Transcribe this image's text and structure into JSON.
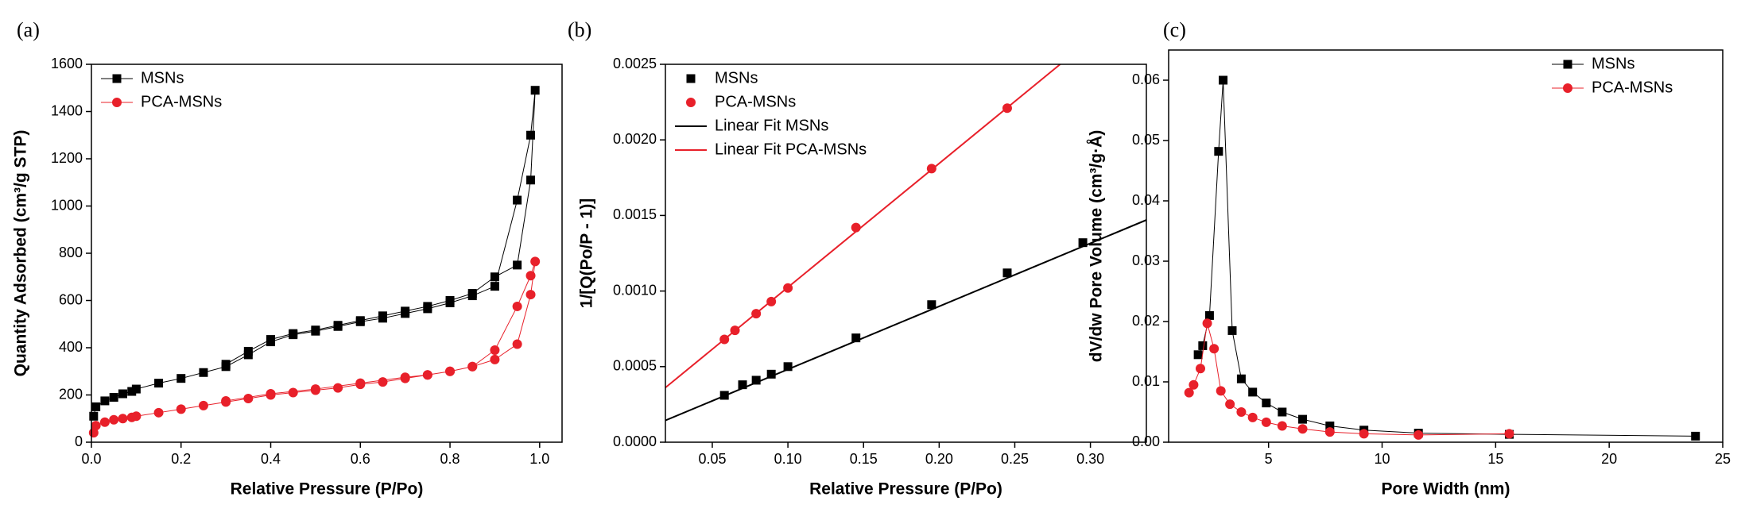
{
  "chart_data": [
    {
      "type": "scatter",
      "panel_label": "(a)",
      "xlabel": "Relative Pressure (P/Po)",
      "ylabel": "Quantity Adsorbed (cm³/g STP)",
      "xlim": [
        0,
        1.05
      ],
      "ylim": [
        0,
        1600
      ],
      "xticks": [
        {
          "value": 0,
          "label": "0.0"
        },
        0.2,
        0.4,
        0.6,
        0.8,
        {
          "value": 1,
          "label": "1.0"
        }
      ],
      "yticks": [
        0,
        200,
        400,
        600,
        800,
        1000,
        1200,
        1400,
        1600
      ],
      "legend": "upper left",
      "series": [
        {
          "name": "MSNs",
          "color": "#000000",
          "marker": "square",
          "line": true,
          "x": [
            0.005,
            0.01,
            0.03,
            0.05,
            0.07,
            0.09,
            0.1,
            0.15,
            0.2,
            0.25,
            0.3,
            0.35,
            0.4,
            0.45,
            0.5,
            0.55,
            0.6,
            0.65,
            0.7,
            0.75,
            0.8,
            0.85,
            0.9,
            0.95,
            0.98,
            0.99,
            0.98,
            0.95,
            0.9,
            0.85,
            0.8,
            0.75,
            0.7,
            0.65,
            0.6,
            0.55,
            0.5,
            0.45,
            0.4,
            0.35,
            0.3
          ],
          "values": [
            110,
            150,
            175,
            190,
            205,
            215,
            225,
            250,
            270,
            295,
            320,
            370,
            425,
            455,
            470,
            490,
            510,
            525,
            545,
            565,
            590,
            620,
            660,
            1025,
            1300,
            1490,
            1110,
            750,
            700,
            630,
            600,
            575,
            555,
            535,
            515,
            495,
            475,
            460,
            435,
            385,
            330
          ]
        },
        {
          "name": "PCA-MSNs",
          "color": "#e8202a",
          "marker": "circle",
          "line": true,
          "x": [
            0.005,
            0.01,
            0.03,
            0.05,
            0.07,
            0.09,
            0.1,
            0.15,
            0.2,
            0.25,
            0.3,
            0.35,
            0.4,
            0.45,
            0.5,
            0.55,
            0.6,
            0.65,
            0.7,
            0.75,
            0.8,
            0.85,
            0.9,
            0.95,
            0.98,
            0.99,
            0.98,
            0.95,
            0.9,
            0.85,
            0.8,
            0.75,
            0.7,
            0.6,
            0.5,
            0.4,
            0.3
          ],
          "values": [
            40,
            70,
            85,
            95,
            100,
            105,
            110,
            125,
            140,
            155,
            170,
            185,
            200,
            210,
            220,
            230,
            245,
            255,
            270,
            285,
            300,
            320,
            390,
            575,
            705,
            765,
            625,
            415,
            350,
            320,
            300,
            285,
            275,
            250,
            225,
            205,
            175
          ]
        }
      ]
    },
    {
      "type": "scatter",
      "panel_label": "(b)",
      "xlabel": "Relative Pressure (P/Po)",
      "ylabel": "1/[Q(Po/P - 1)]",
      "xlim": [
        0.019,
        0.337
      ],
      "ylim": [
        0,
        0.0025
      ],
      "xticks": [
        0.05,
        {
          "value": 0.1,
          "label": "0.10"
        },
        0.15,
        {
          "value": 0.2,
          "label": "0.20"
        },
        0.25,
        {
          "value": 0.3,
          "label": "0.30"
        }
      ],
      "yticks": [
        {
          "value": 0,
          "label": "0.0000"
        },
        {
          "value": 0.0005,
          "label": "0.0005"
        },
        {
          "value": 0.001,
          "label": "0.0010"
        },
        {
          "value": 0.0015,
          "label": "0.0015"
        },
        {
          "value": 0.002,
          "label": "0.0020"
        },
        {
          "value": 0.0025,
          "label": "0.0025"
        }
      ],
      "legend": "upper left",
      "series": [
        {
          "name": "MSNs",
          "color": "#000000",
          "marker": "square",
          "line": false,
          "x": [
            0.058,
            0.07,
            0.079,
            0.089,
            0.1,
            0.145,
            0.195,
            0.245,
            0.295
          ],
          "values": [
            0.00031,
            0.00038,
            0.00041,
            0.00045,
            0.0005,
            0.00069,
            0.00091,
            0.00112,
            0.00132
          ]
        },
        {
          "name": "PCA-MSNs",
          "color": "#e8202a",
          "marker": "circle",
          "line": false,
          "x": [
            0.058,
            0.065,
            0.079,
            0.089,
            0.1,
            0.145,
            0.195,
            0.245
          ],
          "values": [
            0.00068,
            0.00074,
            0.00085,
            0.00093,
            0.00102,
            0.00142,
            0.00181,
            0.00221
          ]
        },
        {
          "name": "Linear Fit MSNs",
          "color": "#000000",
          "marker": null,
          "line": true,
          "x": [
            0.019,
            0.337
          ],
          "values": [
            0.000144,
            0.00147
          ]
        },
        {
          "name": "Linear Fit PCA-MSNs",
          "color": "#e8202a",
          "marker": null,
          "line": true,
          "x": [
            0.019,
            0.28
          ],
          "values": [
            0.000361,
            0.0025
          ]
        }
      ]
    },
    {
      "type": "scatter",
      "panel_label": "(c)",
      "xlabel": "Pore Width (nm)",
      "ylabel": "dV/dw Pore Volume (cm³/g·Å)",
      "xlim": [
        0.6,
        25
      ],
      "ylim": [
        0,
        0.065
      ],
      "xticks": [
        5,
        10,
        15,
        20,
        25
      ],
      "yticks": [
        {
          "value": 0,
          "label": "0.00"
        },
        0.01,
        0.02,
        0.03,
        0.04,
        0.05,
        0.06
      ],
      "legend": "upper right",
      "series": [
        {
          "name": "MSNs",
          "color": "#000000",
          "marker": "square",
          "line": true,
          "x": [
            1.9,
            2.1,
            2.4,
            2.8,
            3.0,
            3.4,
            3.8,
            4.3,
            4.9,
            5.6,
            6.5,
            7.7,
            9.2,
            11.6,
            15.6,
            23.8
          ],
          "values": [
            0.0145,
            0.016,
            0.021,
            0.0482,
            0.06,
            0.0185,
            0.0105,
            0.0083,
            0.0065,
            0.005,
            0.0038,
            0.0027,
            0.002,
            0.0015,
            0.0013,
            0.001
          ]
        },
        {
          "name": "PCA-MSNs",
          "color": "#e8202a",
          "marker": "circle",
          "line": true,
          "x": [
            1.5,
            1.7,
            2.0,
            2.3,
            2.6,
            2.9,
            3.3,
            3.8,
            4.3,
            4.9,
            5.6,
            6.5,
            7.7,
            9.2,
            11.6,
            15.6
          ],
          "values": [
            0.0082,
            0.0095,
            0.0122,
            0.0197,
            0.0155,
            0.0085,
            0.0063,
            0.005,
            0.0041,
            0.0033,
            0.0027,
            0.0022,
            0.0017,
            0.0014,
            0.0012,
            0.0014
          ]
        }
      ]
    }
  ]
}
